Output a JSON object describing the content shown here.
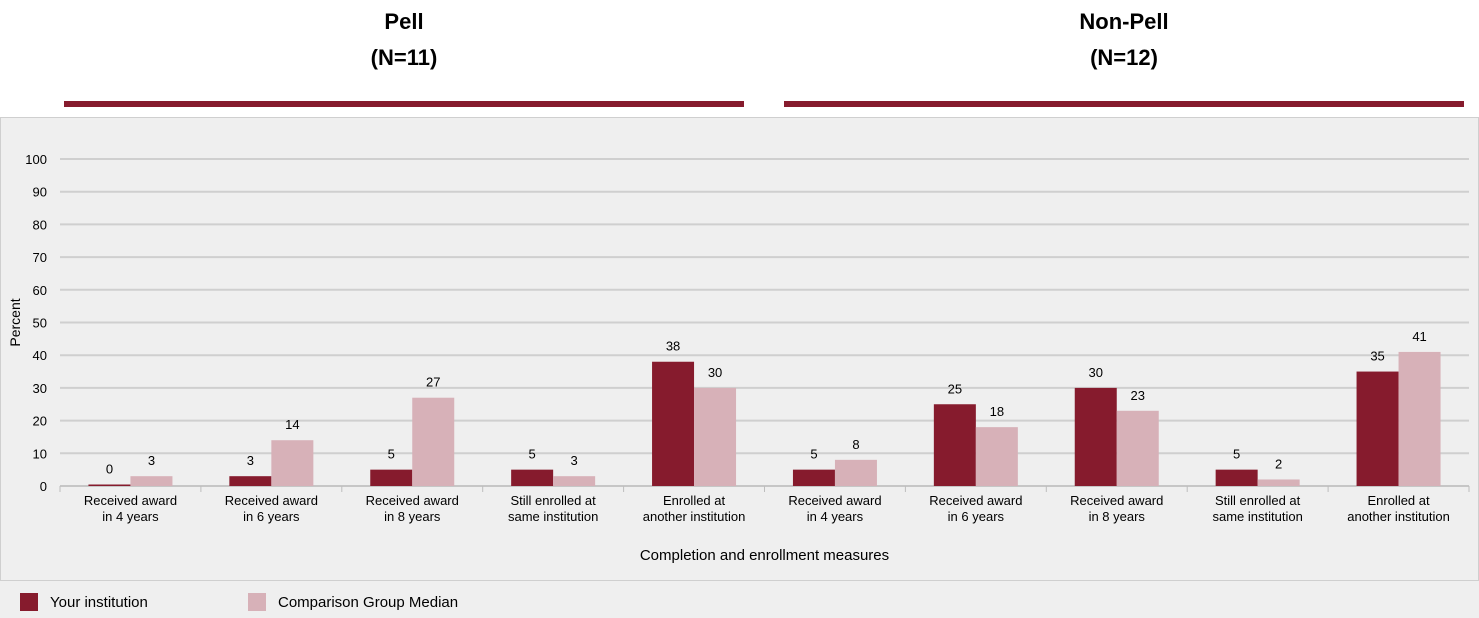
{
  "groups": [
    {
      "name": "Pell",
      "n_label": "(N=11)"
    },
    {
      "name": "Non-Pell",
      "n_label": "(N=12)"
    }
  ],
  "legend": {
    "your_institution": "Your institution",
    "comparison": "Comparison Group Median"
  },
  "colors": {
    "your_institution": "#861b2d",
    "comparison": "#d7b1b8",
    "accent_rule": "#861b2d"
  },
  "chart_data": {
    "type": "bar",
    "xlabel": "Completion and enrollment measures",
    "ylabel": "Percent",
    "ylim": [
      0,
      100
    ],
    "yticks": [
      0,
      10,
      20,
      30,
      40,
      50,
      60,
      70,
      80,
      90,
      100
    ],
    "grid": true,
    "legend_position": "bottom-left",
    "categories": [
      [
        "Received award",
        "in 4 years"
      ],
      [
        "Received award",
        "in 6 years"
      ],
      [
        "Received award",
        "in 8 years"
      ],
      [
        "Still enrolled at",
        "same institution"
      ],
      [
        "Enrolled at",
        "another institution"
      ],
      [
        "Received award",
        "in 4 years"
      ],
      [
        "Received award",
        "in 6 years"
      ],
      [
        "Received award",
        "in 8 years"
      ],
      [
        "Still enrolled at",
        "same institution"
      ],
      [
        "Enrolled at",
        "another institution"
      ]
    ],
    "series": [
      {
        "name": "Your institution",
        "values": [
          0,
          3,
          5,
          5,
          38,
          5,
          25,
          30,
          5,
          35
        ]
      },
      {
        "name": "Comparison Group Median",
        "values": [
          3,
          14,
          27,
          3,
          30,
          8,
          18,
          23,
          2,
          41
        ]
      }
    ]
  }
}
